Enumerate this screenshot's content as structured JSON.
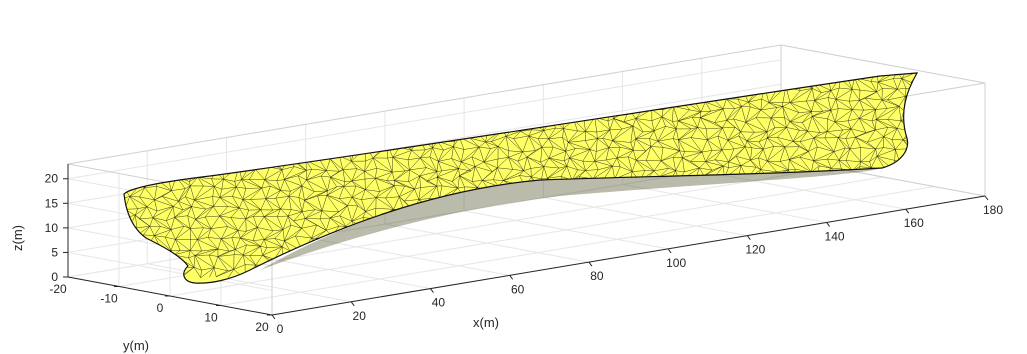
{
  "figure": {
    "surface_color": "#ffff66",
    "mesh_color": "#000000",
    "grid": true,
    "box": true
  },
  "axes": {
    "x": {
      "label": "x(m)",
      "ticks": [
        "0",
        "20",
        "40",
        "60",
        "80",
        "100",
        "120",
        "140",
        "160",
        "180"
      ],
      "range": [
        0,
        180
      ]
    },
    "y": {
      "label": "y(m)",
      "ticks": [
        "-20",
        "-10",
        "0",
        "10",
        "20"
      ],
      "range": [
        -20,
        20
      ]
    },
    "z": {
      "label": "z(m)",
      "ticks": [
        "0",
        "5",
        "10",
        "15",
        "20"
      ],
      "range": [
        0,
        23
      ]
    }
  }
}
